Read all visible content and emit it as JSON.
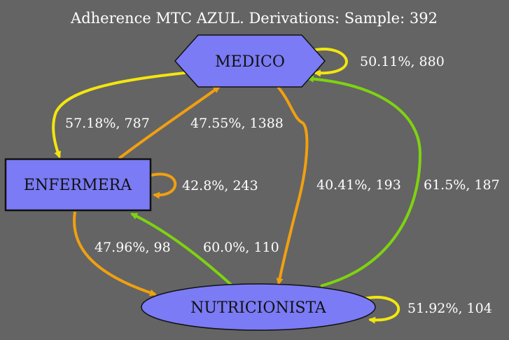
{
  "title": "Adherence MTC AZUL. Derivations: Sample: 392",
  "colors": {
    "background": "#646464",
    "node_fill": "#7b7bf5",
    "yellow": "#f2e60f",
    "orange": "#f0a010",
    "green": "#7ed310"
  },
  "nodes": {
    "medico": {
      "label": "MEDICO",
      "shape": "hexagon"
    },
    "enfermera": {
      "label": "ENFERMERA",
      "shape": "box"
    },
    "nutricionista": {
      "label": "NUTRICIONISTA",
      "shape": "ellipse"
    }
  },
  "edges": {
    "medico_self": {
      "from": "MEDICO",
      "to": "MEDICO",
      "label": "50.11%, 880",
      "color": "yellow"
    },
    "medico_enfermera": {
      "from": "MEDICO",
      "to": "ENFERMERA",
      "label": "57.18%, 787",
      "color": "yellow"
    },
    "enfermera_medico": {
      "from": "ENFERMERA",
      "to": "MEDICO",
      "label": "47.55%, 1388",
      "color": "orange"
    },
    "enfermera_self": {
      "from": "ENFERMERA",
      "to": "ENFERMERA",
      "label": "42.8%, 243",
      "color": "orange"
    },
    "medico_nutricionista": {
      "from": "MEDICO",
      "to": "NUTRICIONISTA",
      "label": "40.41%, 193",
      "color": "orange"
    },
    "nutricionista_medico": {
      "from": "NUTRICIONISTA",
      "to": "MEDICO",
      "label": "61.5%, 187",
      "color": "green"
    },
    "enfermera_nutricionista": {
      "from": "ENFERMERA",
      "to": "NUTRICIONISTA",
      "label": "47.96%, 98",
      "color": "orange"
    },
    "nutricionista_enfermera": {
      "from": "NUTRICIONISTA",
      "to": "ENFERMERA",
      "label": "60.0%, 110",
      "color": "green"
    },
    "nutricionista_self": {
      "from": "NUTRICIONISTA",
      "to": "NUTRICIONISTA",
      "label": "51.92%, 104",
      "color": "yellow"
    }
  }
}
